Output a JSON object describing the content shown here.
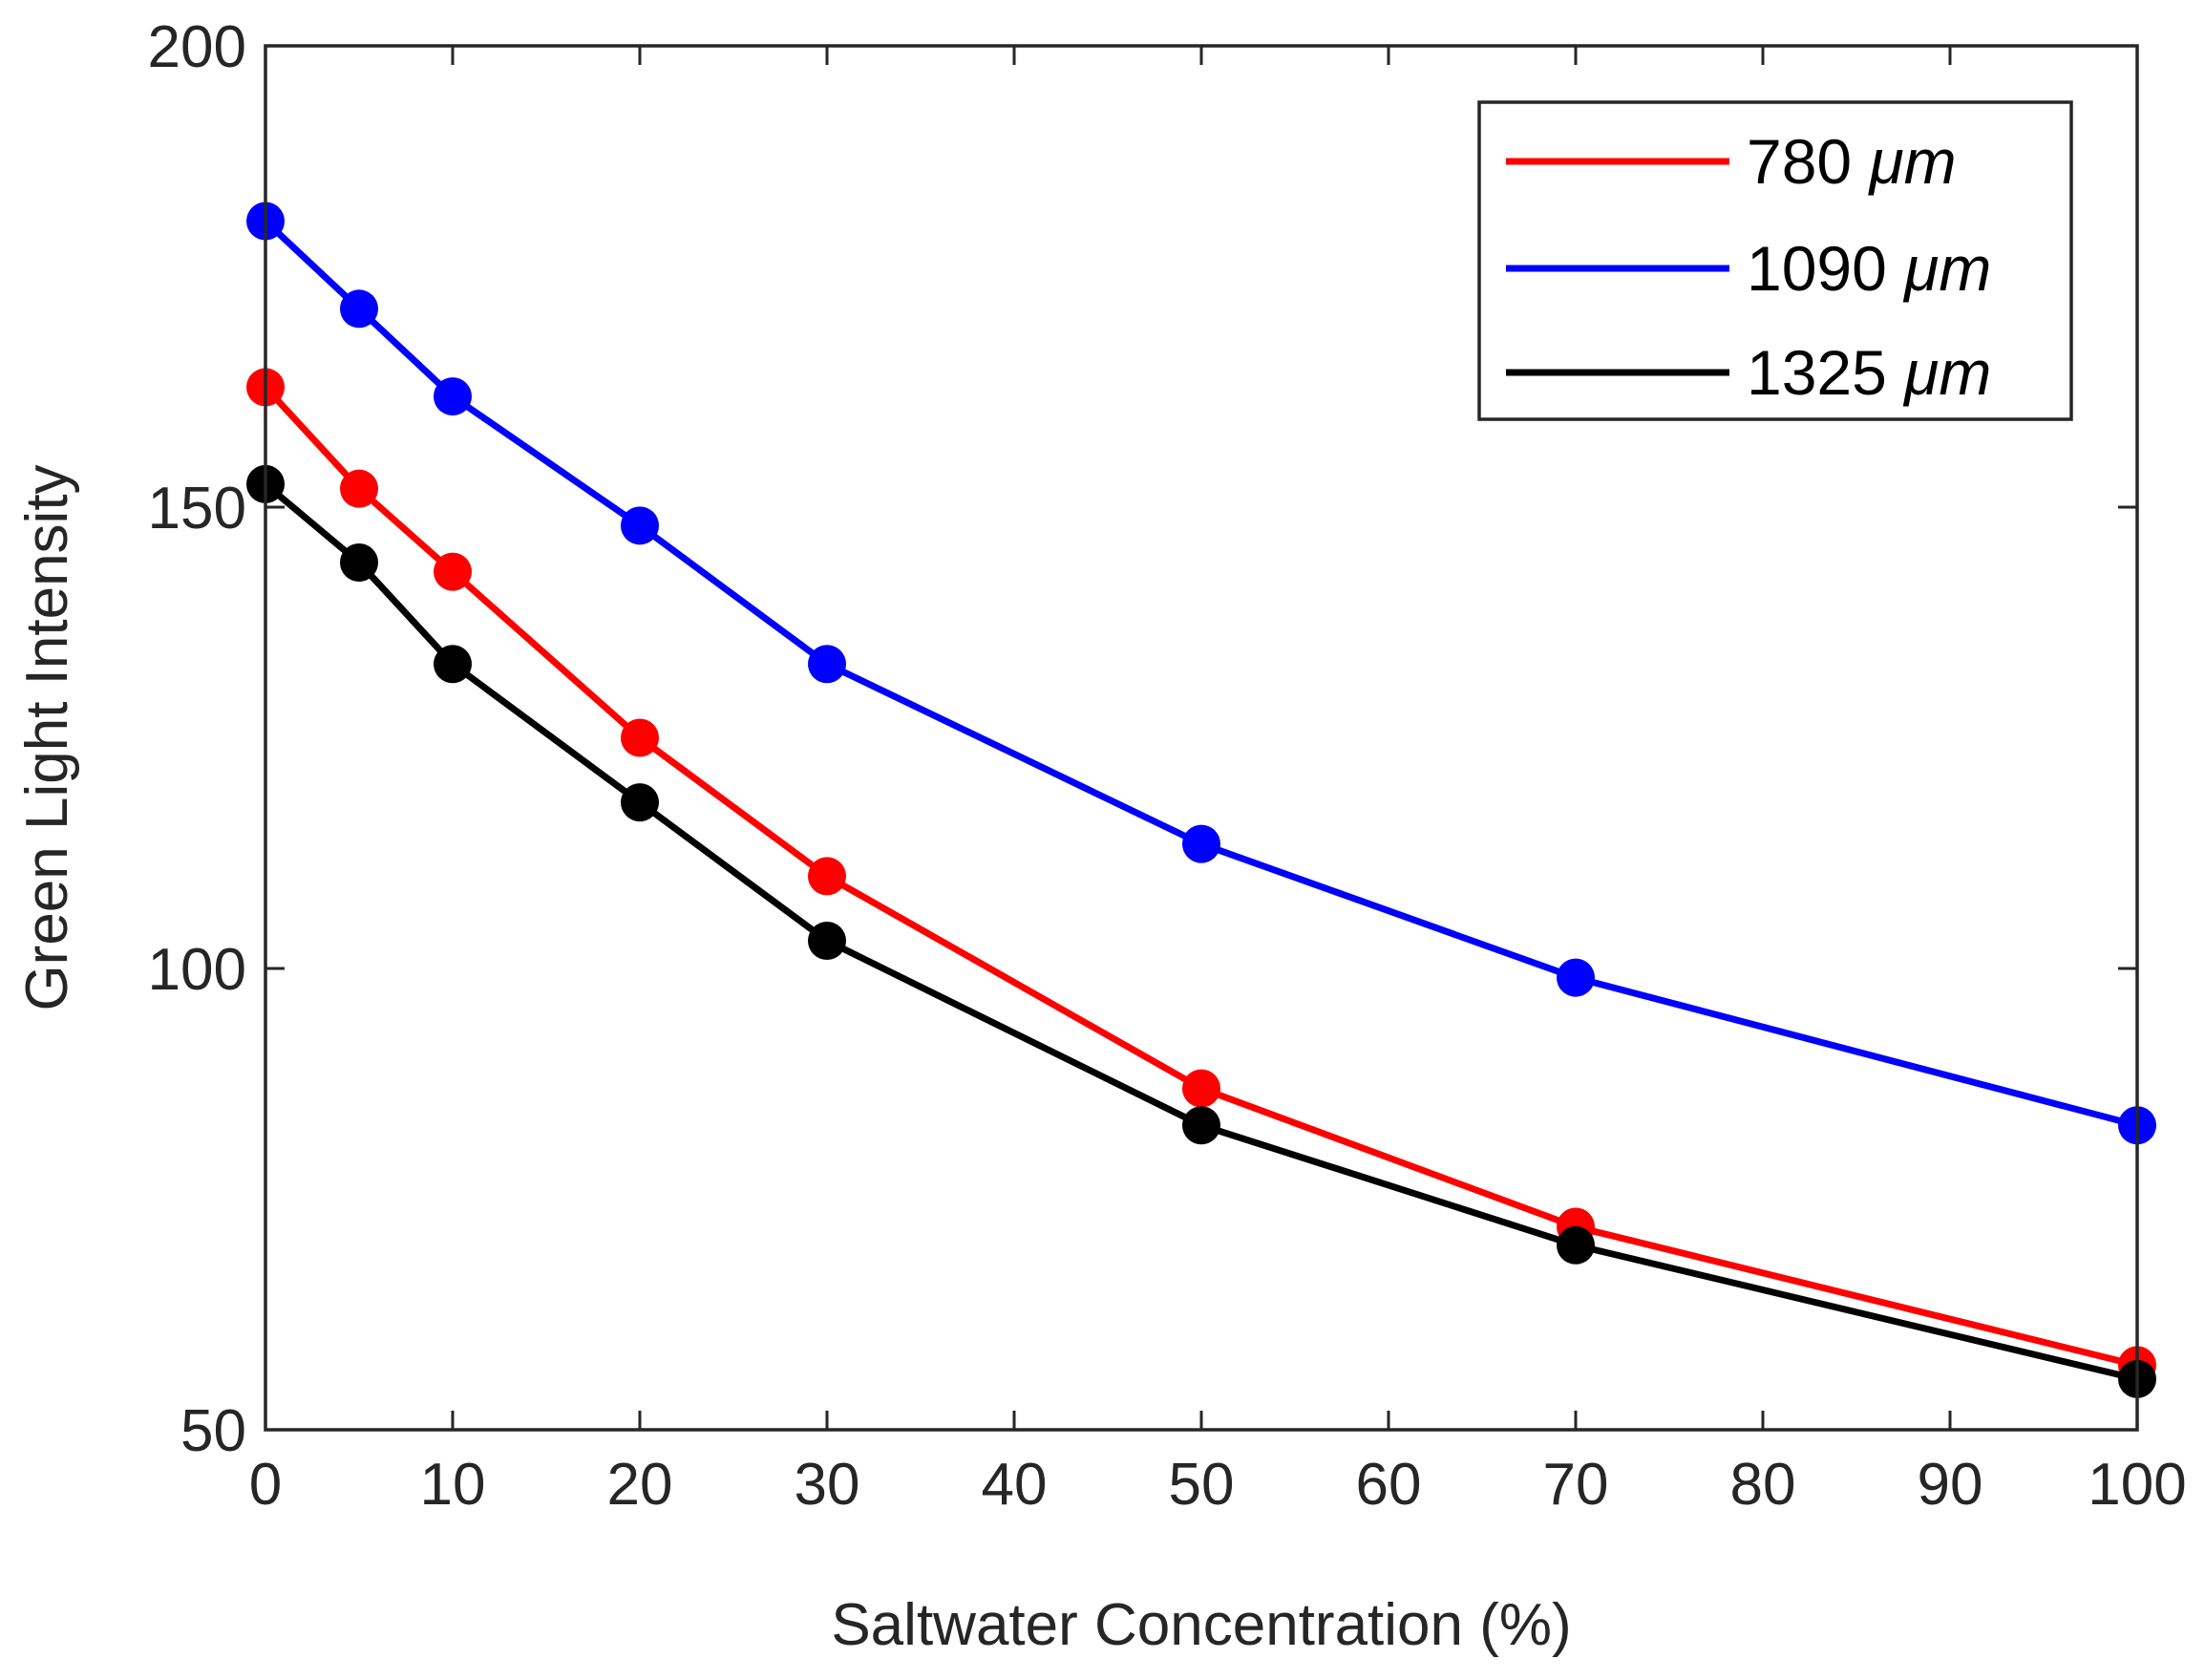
{
  "chart_data": {
    "type": "line",
    "title": "",
    "xlabel": "Saltwater Concentration (%)",
    "ylabel": "Green Light Intensity",
    "xlim": [
      0,
      100
    ],
    "ylim": [
      50,
      200
    ],
    "xticks": [
      0,
      10,
      20,
      30,
      40,
      50,
      60,
      70,
      80,
      90,
      100
    ],
    "yticks": [
      50,
      100,
      150,
      200
    ],
    "grid": false,
    "legend_position": "top-right",
    "x": [
      0,
      5,
      10,
      20,
      30,
      50,
      70,
      100
    ],
    "series": [
      {
        "name": "780",
        "unit": "μm",
        "color": "#ff0000",
        "values": [
          163,
          152,
          143,
          125,
          110,
          87,
          72,
          57
        ]
      },
      {
        "name": "1090",
        "unit": "μm",
        "color": "#0000ff",
        "values": [
          181,
          171.5,
          162,
          148,
          133,
          113.5,
          99,
          83
        ]
      },
      {
        "name": "1325",
        "unit": "μm",
        "color": "#000000",
        "values": [
          152.5,
          144,
          133,
          118,
          103,
          83,
          70,
          55.5
        ]
      }
    ]
  }
}
